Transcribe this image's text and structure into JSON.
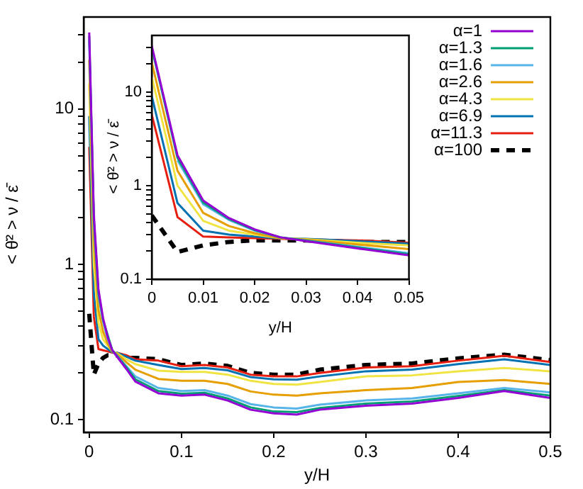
{
  "chart_data": [
    {
      "type": "line",
      "xlabel": "y/H",
      "ylabel": "< θ̇² > ν / ε̄",
      "log": "y",
      "grid": false,
      "legend": "top right",
      "x": [
        0,
        0.005,
        0.01,
        0.015,
        0.02,
        0.025,
        0.03,
        0.04,
        0.05,
        0.075,
        0.1,
        0.125,
        0.15,
        0.175,
        0.2,
        0.225,
        0.25,
        0.3,
        0.35,
        0.4,
        0.45,
        0.5
      ],
      "xlim": [
        -0.006,
        0.5
      ],
      "xticks": [
        0,
        0.1,
        0.2,
        0.3,
        0.4,
        0.5
      ],
      "ylim": [
        0.083,
        39
      ],
      "yticks": [
        0.1,
        {
          "value": 0.2,
          "label": null
        },
        {
          "value": 0.3,
          "label": null
        },
        {
          "value": 0.4,
          "label": null
        },
        {
          "value": 0.5,
          "label": null
        },
        {
          "value": 0.6,
          "label": null
        },
        {
          "value": 0.7,
          "label": null
        },
        {
          "value": 0.8,
          "label": null
        },
        {
          "value": 0.9,
          "label": null
        },
        1,
        {
          "value": 2,
          "label": null
        },
        {
          "value": 3,
          "label": null
        },
        {
          "value": 4,
          "label": null
        },
        {
          "value": 5,
          "label": null
        },
        {
          "value": 6,
          "label": null
        },
        {
          "value": 7,
          "label": null
        },
        {
          "value": 8,
          "label": null
        },
        {
          "value": 9,
          "label": null
        },
        10,
        {
          "value": 20,
          "label": null
        },
        {
          "value": 30,
          "label": null
        }
      ],
      "series": [
        {
          "name": "α=1",
          "color": "#9400d3",
          "values": [
            31,
            2.1,
            0.69,
            0.45,
            0.34,
            0.28,
            0.255,
            0.213,
            0.176,
            0.148,
            0.143,
            0.145,
            0.133,
            0.116,
            0.11,
            0.108,
            0.116,
            0.123,
            0.127,
            0.138,
            0.153,
            0.138
          ]
        },
        {
          "name": "α=1.3",
          "color": "#009e73",
          "values": [
            29.5,
            1.97,
            0.66,
            0.44,
            null,
            0.28,
            0.258,
            0.218,
            0.182,
            0.153,
            0.147,
            0.149,
            0.137,
            0.12,
            0.113,
            0.112,
            0.119,
            0.127,
            0.131,
            0.142,
            0.155,
            0.143
          ]
        },
        {
          "name": "α=1.6",
          "color": "#56b4e9",
          "values": [
            27.5,
            1.86,
            0.63,
            0.43,
            0.33,
            0.28,
            0.26,
            0.222,
            0.19,
            0.16,
            0.153,
            0.155,
            0.143,
            0.126,
            0.12,
            0.118,
            0.125,
            0.133,
            0.137,
            0.148,
            0.16,
            0.15
          ]
        },
        {
          "name": "α=2.6",
          "color": "#e69f00",
          "values": [
            20.6,
            1.44,
            0.51,
            0.37,
            0.31,
            0.275,
            0.265,
            0.235,
            0.21,
            0.183,
            0.178,
            0.178,
            0.17,
            0.152,
            0.145,
            0.143,
            0.148,
            0.155,
            0.16,
            0.175,
            0.18,
            0.17
          ]
        },
        {
          "name": "α=4.3",
          "color": "#f0e442",
          "values": [
            14.5,
            1.0,
            0.42,
            0.33,
            0.3,
            0.275,
            0.268,
            0.245,
            0.228,
            0.207,
            0.203,
            0.203,
            0.195,
            0.178,
            0.17,
            0.168,
            0.175,
            0.19,
            0.193,
            0.205,
            0.215,
            0.205
          ]
        },
        {
          "name": "α=6.9",
          "color": "#0072b2",
          "values": [
            9.0,
            0.65,
            0.33,
            0.3,
            0.285,
            0.272,
            0.27,
            0.255,
            0.24,
            0.225,
            0.212,
            0.215,
            0.208,
            0.188,
            0.182,
            0.181,
            0.19,
            0.205,
            0.21,
            0.228,
            0.245,
            0.225
          ]
        },
        {
          "name": "α=11.3",
          "color": "#e51e10",
          "values": [
            5.7,
            0.46,
            0.285,
            0.28,
            0.275,
            0.27,
            0.27,
            0.26,
            0.245,
            0.24,
            0.221,
            0.225,
            0.217,
            0.195,
            0.19,
            0.19,
            0.2,
            0.217,
            0.221,
            0.24,
            0.258,
            0.235
          ]
        },
        {
          "name": "α=100",
          "color": "#000000",
          "line_style": "dashed",
          "values": [
            0.48,
            0.195,
            0.23,
            0.25,
            0.26,
            0.26,
            0.26,
            0.25,
            0.25,
            0.245,
            0.225,
            0.23,
            0.222,
            0.2,
            0.195,
            0.195,
            0.21,
            0.225,
            0.23,
            0.248,
            0.262,
            0.242
          ]
        }
      ]
    },
    {
      "type": "line",
      "xlabel": "y/H",
      "ylabel": "< θ̇² > ν / ε̄",
      "log": "y",
      "grid": false,
      "x": [
        0,
        0.005,
        0.01,
        0.015,
        0.02,
        0.025,
        0.03,
        0.04,
        0.05
      ],
      "xlim": [
        0,
        0.05
      ],
      "xticks": [
        0,
        0.01,
        0.02,
        0.03,
        0.04,
        0.05
      ],
      "ylim": [
        0.1,
        40
      ],
      "yticks": [
        0.1,
        {
          "value": 0.2,
          "label": null
        },
        {
          "value": 0.3,
          "label": null
        },
        {
          "value": 0.4,
          "label": null
        },
        {
          "value": 0.5,
          "label": null
        },
        {
          "value": 0.6,
          "label": null
        },
        {
          "value": 0.7,
          "label": null
        },
        {
          "value": 0.8,
          "label": null
        },
        {
          "value": 0.9,
          "label": null
        },
        1,
        {
          "value": 2,
          "label": null
        },
        {
          "value": 3,
          "label": null
        },
        {
          "value": 4,
          "label": null
        },
        {
          "value": 5,
          "label": null
        },
        {
          "value": 6,
          "label": null
        },
        {
          "value": 7,
          "label": null
        },
        {
          "value": 8,
          "label": null
        },
        {
          "value": 9,
          "label": null
        },
        10,
        {
          "value": 20,
          "label": null
        },
        {
          "value": 30,
          "label": null
        }
      ],
      "series": [
        {
          "color": "#9400d3",
          "values": [
            31,
            2.1,
            0.69,
            0.45,
            0.34,
            0.28,
            0.255,
            0.213,
            0.18
          ]
        },
        {
          "color": "#009e73",
          "values": [
            29.5,
            1.97,
            0.66,
            0.44,
            0.335,
            0.28,
            0.258,
            0.218,
            0.185
          ]
        },
        {
          "color": "#56b4e9",
          "values": [
            null,
            1.86,
            0.63,
            0.43,
            0.33,
            0.28,
            0.26,
            0.222,
            0.19
          ]
        },
        {
          "color": "#e69f00",
          "values": [
            20.6,
            1.44,
            0.51,
            0.37,
            0.31,
            0.275,
            0.265,
            0.235,
            0.21
          ]
        },
        {
          "color": "#f0e442",
          "values": [
            14.5,
            1.0,
            0.42,
            0.33,
            0.3,
            0.275,
            0.268,
            0.245,
            0.23
          ]
        },
        {
          "color": "#0072b2",
          "values": [
            9.0,
            0.65,
            0.33,
            0.3,
            0.285,
            0.272,
            0.27,
            0.255,
            0.24
          ]
        },
        {
          "color": "#e51e10",
          "values": [
            5.7,
            0.46,
            0.285,
            0.28,
            0.275,
            0.27,
            null,
            0.26,
            0.245
          ]
        },
        {
          "color": "#000000",
          "line_style": "dashed",
          "values": [
            0.48,
            0.195,
            0.23,
            0.25,
            0.26,
            0.26,
            0.26,
            0.25,
            0.25
          ]
        }
      ]
    }
  ]
}
